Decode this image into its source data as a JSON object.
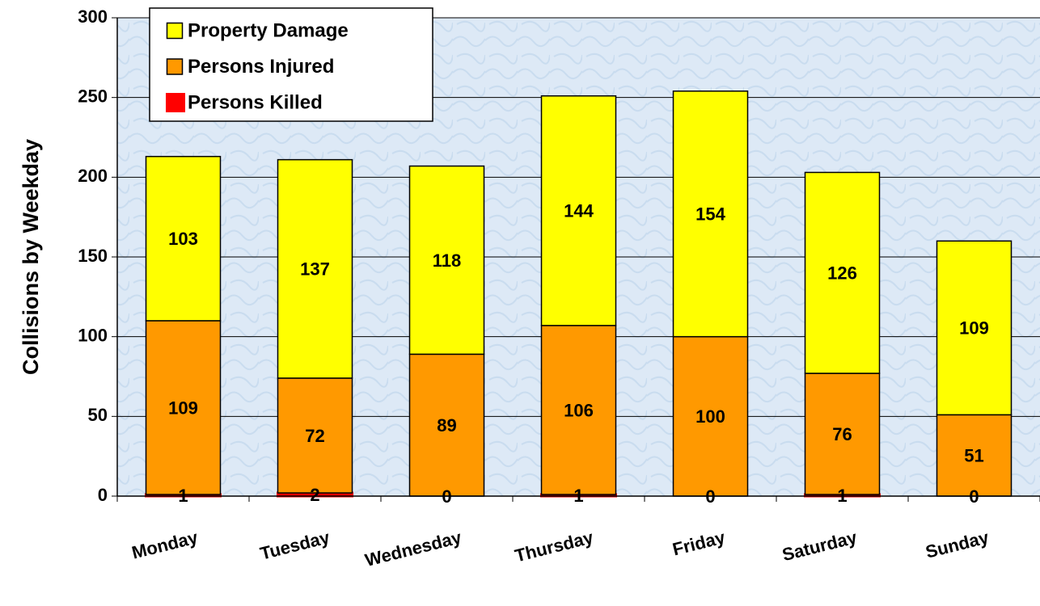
{
  "chart_data": {
    "type": "stacked_bar",
    "y_label": "Collisions by Weekday",
    "categories": [
      "Monday",
      "Tuesday",
      "Wednesday",
      "Thursday",
      "Friday",
      "Saturday",
      "Sunday"
    ],
    "series": [
      {
        "name": "Persons Killed",
        "color": "#ff0000",
        "values": [
          1,
          2,
          0,
          1,
          0,
          1,
          0
        ]
      },
      {
        "name": "Persons Injured",
        "color": "#ff9900",
        "values": [
          109,
          72,
          89,
          106,
          100,
          76,
          51
        ]
      },
      {
        "name": "Property Damage",
        "color": "#ffff00",
        "values": [
          103,
          137,
          118,
          144,
          154,
          126,
          109
        ]
      }
    ],
    "ylim": [
      0,
      300
    ],
    "yticks": [
      0,
      50,
      100,
      150,
      200,
      250,
      300
    ],
    "grid": true,
    "legend": "top-left"
  }
}
